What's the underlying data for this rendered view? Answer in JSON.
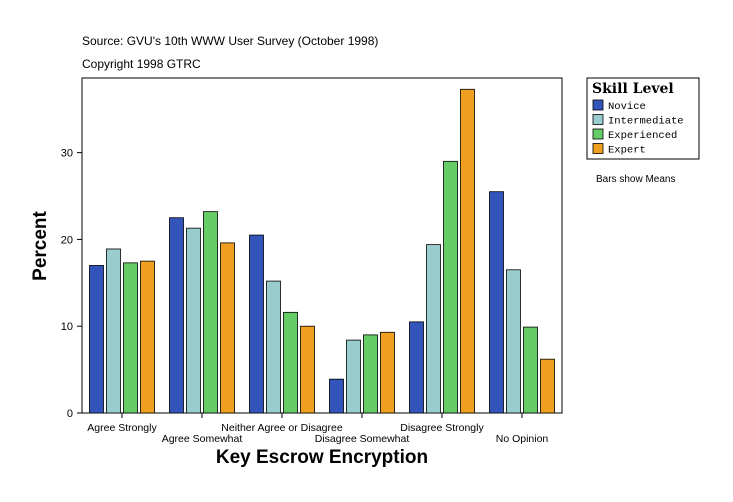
{
  "chart_data": {
    "type": "bar",
    "source": "Source: GVU's 10th WWW User Survey (October 1998)",
    "copyright": "Copyright 1998 GTRC",
    "note": "Bars show Means",
    "x_label": "Key Escrow Encryption",
    "y_label": "Percent",
    "legend_title": "Skill Level",
    "categories": [
      "Agree Strongly",
      "Agree Somewhat",
      "Neither Agree or Disagree",
      "Disagree Somewhat",
      "Disagree Strongly",
      "No Opinion"
    ],
    "series": [
      {
        "name": "Novice",
        "color": "#3355bb",
        "values": [
          17.0,
          22.5,
          20.5,
          3.9,
          10.5,
          25.5
        ]
      },
      {
        "name": "Intermediate",
        "color": "#99cccc",
        "values": [
          18.9,
          21.3,
          15.2,
          8.4,
          19.4,
          16.5
        ]
      },
      {
        "name": "Experienced",
        "color": "#66cc66",
        "values": [
          17.3,
          23.2,
          11.6,
          9.0,
          29.0,
          9.9
        ]
      },
      {
        "name": "Expert",
        "color": "#f0a020",
        "values": [
          17.5,
          19.6,
          10.0,
          9.3,
          37.3,
          6.2
        ]
      }
    ],
    "ylim": [
      0,
      38.6
    ],
    "yticks": [
      0,
      10,
      20,
      30
    ]
  }
}
